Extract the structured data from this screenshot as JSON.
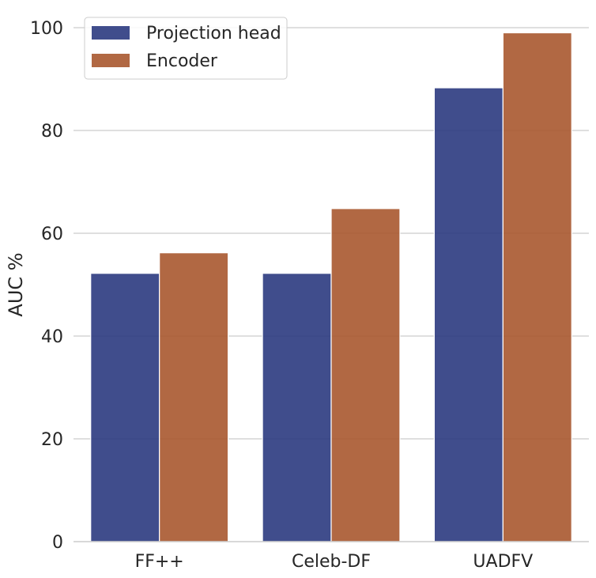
{
  "chart_data": {
    "type": "bar",
    "title": "",
    "xlabel": "",
    "ylabel": "AUC %",
    "categories": [
      "FF++",
      "Celeb-DF",
      "UADFV"
    ],
    "series": [
      {
        "name": "Projection head",
        "values": [
          52.2,
          52.2,
          88.3
        ],
        "color": "#2b3a80"
      },
      {
        "name": "Encoder",
        "values": [
          56.2,
          64.8,
          99.0
        ],
        "color": "#a8582f"
      }
    ],
    "ylim": [
      0,
      100
    ],
    "yticks": [
      0,
      20,
      40,
      60,
      80,
      100
    ],
    "grid": "horizontal",
    "legend_position": "top-left"
  }
}
